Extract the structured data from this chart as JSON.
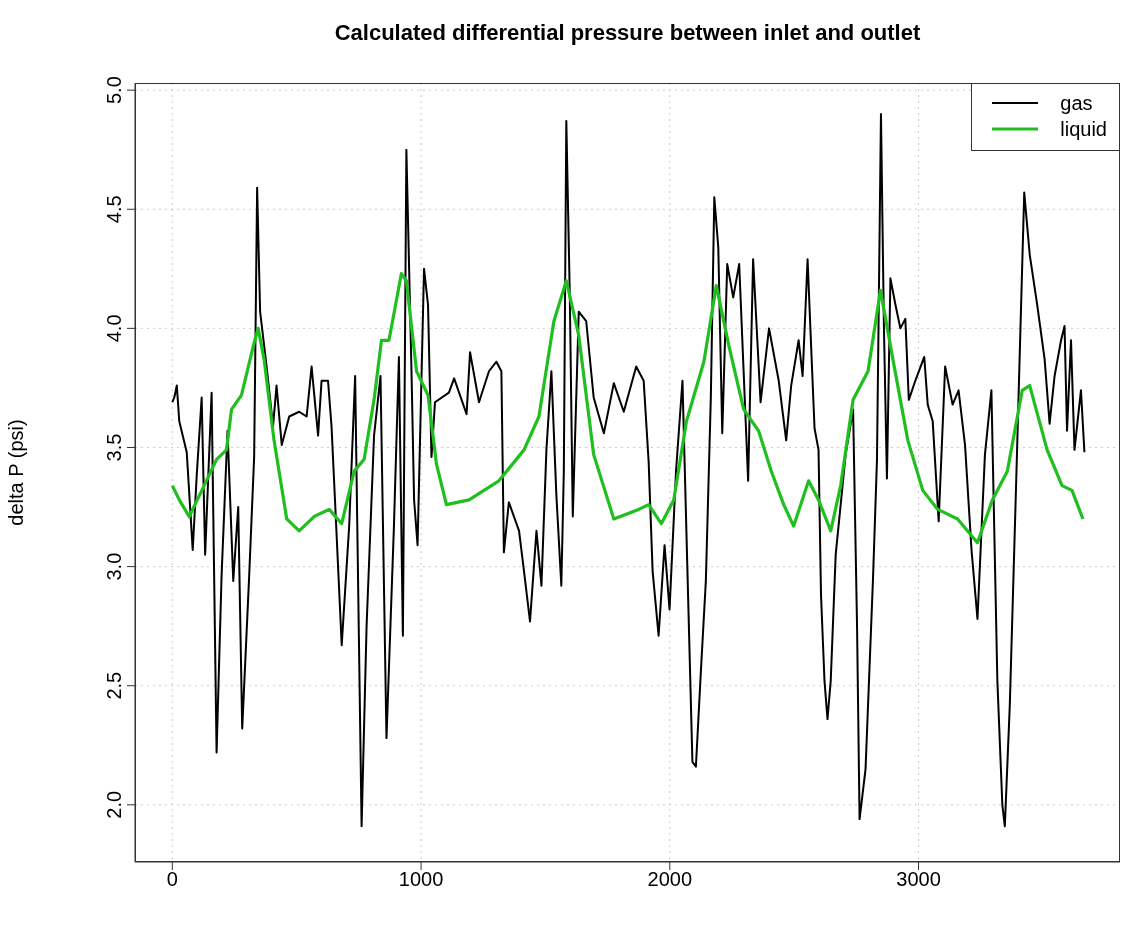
{
  "chart_data": {
    "type": "line",
    "title": "Calculated differential pressure between inlet and outlet",
    "ylabel": "delta P (psi)",
    "xlim": [
      -150,
      3810
    ],
    "ylim": [
      1.76,
      5.03
    ],
    "xticks": [
      0,
      1000,
      2000,
      3000
    ],
    "yticks": [
      {
        "value": 2,
        "label": "2.0"
      },
      {
        "value": 2.5,
        "label": "2.5"
      },
      {
        "value": 3,
        "label": "3.0"
      },
      {
        "value": 3.5,
        "label": "3.5"
      },
      {
        "value": 4,
        "label": "4.0"
      },
      {
        "value": 4.5,
        "label": "4.5"
      },
      {
        "value": 5,
        "label": "5.0"
      }
    ],
    "grid": true,
    "legend": "top right",
    "marker": "none",
    "line_style": "solid",
    "series": [
      {
        "name": "gas",
        "color": "#000000",
        "x": [
          0,
          8,
          18,
          28,
          58,
          82,
          98,
          118,
          132,
          158,
          178,
          198,
          222,
          245,
          265,
          281,
          309,
          329,
          341,
          353,
          379,
          405,
          419,
          440,
          470,
          510,
          540,
          560,
          586,
          600,
          626,
          640,
          654,
          681,
          711,
          735,
          761,
          781,
          811,
          837,
          861,
          891,
          911,
          927,
          941,
          962,
          972,
          986,
          1012,
          1028,
          1042,
          1056,
          1112,
          1133,
          1183,
          1197,
          1233,
          1273,
          1303,
          1323,
          1333,
          1353,
          1394,
          1414,
          1438,
          1464,
          1484,
          1504,
          1524,
          1544,
          1564,
          1574,
          1584,
          1598,
          1610,
          1634,
          1664,
          1694,
          1735,
          1775,
          1815,
          1865,
          1895,
          1915,
          1931,
          1955,
          1979,
          1999,
          2025,
          2051,
          2071,
          2091,
          2105,
          2125,
          2145,
          2165,
          2179,
          2195,
          2211,
          2231,
          2255,
          2279,
          2315,
          2335,
          2365,
          2399,
          2438,
          2468,
          2488,
          2518,
          2534,
          2554,
          2568,
          2582,
          2598,
          2608,
          2622,
          2634,
          2647,
          2667,
          2707,
          2737,
          2753,
          2763,
          2787,
          2817,
          2833,
          2849,
          2861,
          2873,
          2887,
          2907,
          2927,
          2947,
          2961,
          2987,
          3023,
          3037,
          3057,
          3081,
          3107,
          3137,
          3161,
          3187,
          3213,
          3237,
          3267,
          3293,
          3317,
          3337,
          3347,
          3367,
          3393,
          3425,
          3447,
          3477,
          3507,
          3527,
          3547,
          3573,
          3587,
          3597,
          3613,
          3627,
          3653,
          3667
        ],
        "values": [
          3.69,
          3.71,
          3.76,
          3.61,
          3.48,
          3.07,
          3.38,
          3.71,
          3.05,
          3.73,
          2.22,
          2.96,
          3.57,
          2.94,
          3.25,
          2.32,
          2.96,
          3.46,
          4.59,
          4.07,
          3.84,
          3.59,
          3.76,
          3.51,
          3.63,
          3.65,
          3.63,
          3.84,
          3.55,
          3.78,
          3.78,
          3.59,
          3.28,
          2.67,
          3.17,
          3.8,
          1.91,
          2.75,
          3.55,
          3.8,
          2.28,
          3.17,
          3.88,
          2.71,
          4.75,
          3.8,
          3.28,
          3.09,
          4.25,
          4.1,
          3.46,
          3.69,
          3.73,
          3.79,
          3.64,
          3.9,
          3.69,
          3.82,
          3.86,
          3.82,
          3.06,
          3.27,
          3.15,
          2.98,
          2.77,
          3.15,
          2.92,
          3.49,
          3.82,
          3.3,
          2.92,
          3.4,
          4.87,
          4.14,
          3.21,
          4.07,
          4.03,
          3.71,
          3.56,
          3.77,
          3.65,
          3.84,
          3.78,
          3.44,
          2.98,
          2.71,
          3.09,
          2.82,
          3.4,
          3.78,
          2.98,
          2.18,
          2.16,
          2.56,
          2.94,
          3.71,
          4.55,
          4.34,
          3.56,
          4.27,
          4.13,
          4.27,
          3.36,
          4.29,
          3.69,
          4.0,
          3.78,
          3.53,
          3.76,
          3.95,
          3.8,
          4.29,
          3.93,
          3.58,
          3.49,
          2.88,
          2.52,
          2.36,
          2.52,
          3.05,
          3.47,
          3.66,
          2.74,
          1.94,
          2.15,
          2.95,
          3.45,
          4.9,
          4.0,
          3.37,
          4.21,
          4.1,
          4.0,
          4.04,
          3.7,
          3.78,
          3.88,
          3.68,
          3.61,
          3.19,
          3.84,
          3.68,
          3.74,
          3.51,
          3.07,
          2.78,
          3.47,
          3.74,
          2.52,
          2.0,
          1.91,
          2.42,
          3.37,
          4.57,
          4.31,
          4.1,
          3.87,
          3.6,
          3.8,
          3.95,
          4.01,
          3.57,
          3.95,
          3.49,
          3.74,
          3.48
        ]
      },
      {
        "name": "liquid",
        "color": "#1fbf1f",
        "x": [
          0,
          28,
          68,
          128,
          178,
          218,
          238,
          278,
          329,
          345,
          369,
          409,
          460,
          510,
          570,
          631,
          681,
          731,
          771,
          811,
          841,
          871,
          921,
          941,
          982,
          1028,
          1062,
          1102,
          1193,
          1313,
          1414,
          1474,
          1534,
          1584,
          1634,
          1694,
          1775,
          1875,
          1915,
          1966,
          2016,
          2067,
          2137,
          2187,
          2237,
          2297,
          2357,
          2408,
          2458,
          2498,
          2558,
          2598,
          2647,
          2687,
          2737,
          2797,
          2847,
          2897,
          2957,
          3017,
          3077,
          3157,
          3237,
          3297,
          3357,
          3417,
          3447,
          3517,
          3577,
          3617,
          3661
        ],
        "values": [
          3.34,
          3.28,
          3.21,
          3.34,
          3.45,
          3.49,
          3.66,
          3.72,
          3.94,
          4.0,
          3.87,
          3.53,
          3.2,
          3.15,
          3.21,
          3.24,
          3.18,
          3.4,
          3.45,
          3.7,
          3.95,
          3.95,
          4.23,
          4.2,
          3.82,
          3.72,
          3.43,
          3.26,
          3.28,
          3.36,
          3.49,
          3.63,
          4.03,
          4.2,
          3.97,
          3.47,
          3.2,
          3.24,
          3.26,
          3.18,
          3.28,
          3.61,
          3.86,
          4.18,
          3.93,
          3.66,
          3.57,
          3.4,
          3.26,
          3.17,
          3.36,
          3.28,
          3.15,
          3.34,
          3.7,
          3.82,
          4.16,
          3.87,
          3.53,
          3.32,
          3.24,
          3.2,
          3.1,
          3.28,
          3.4,
          3.74,
          3.76,
          3.49,
          3.34,
          3.32,
          3.2
        ]
      }
    ]
  }
}
